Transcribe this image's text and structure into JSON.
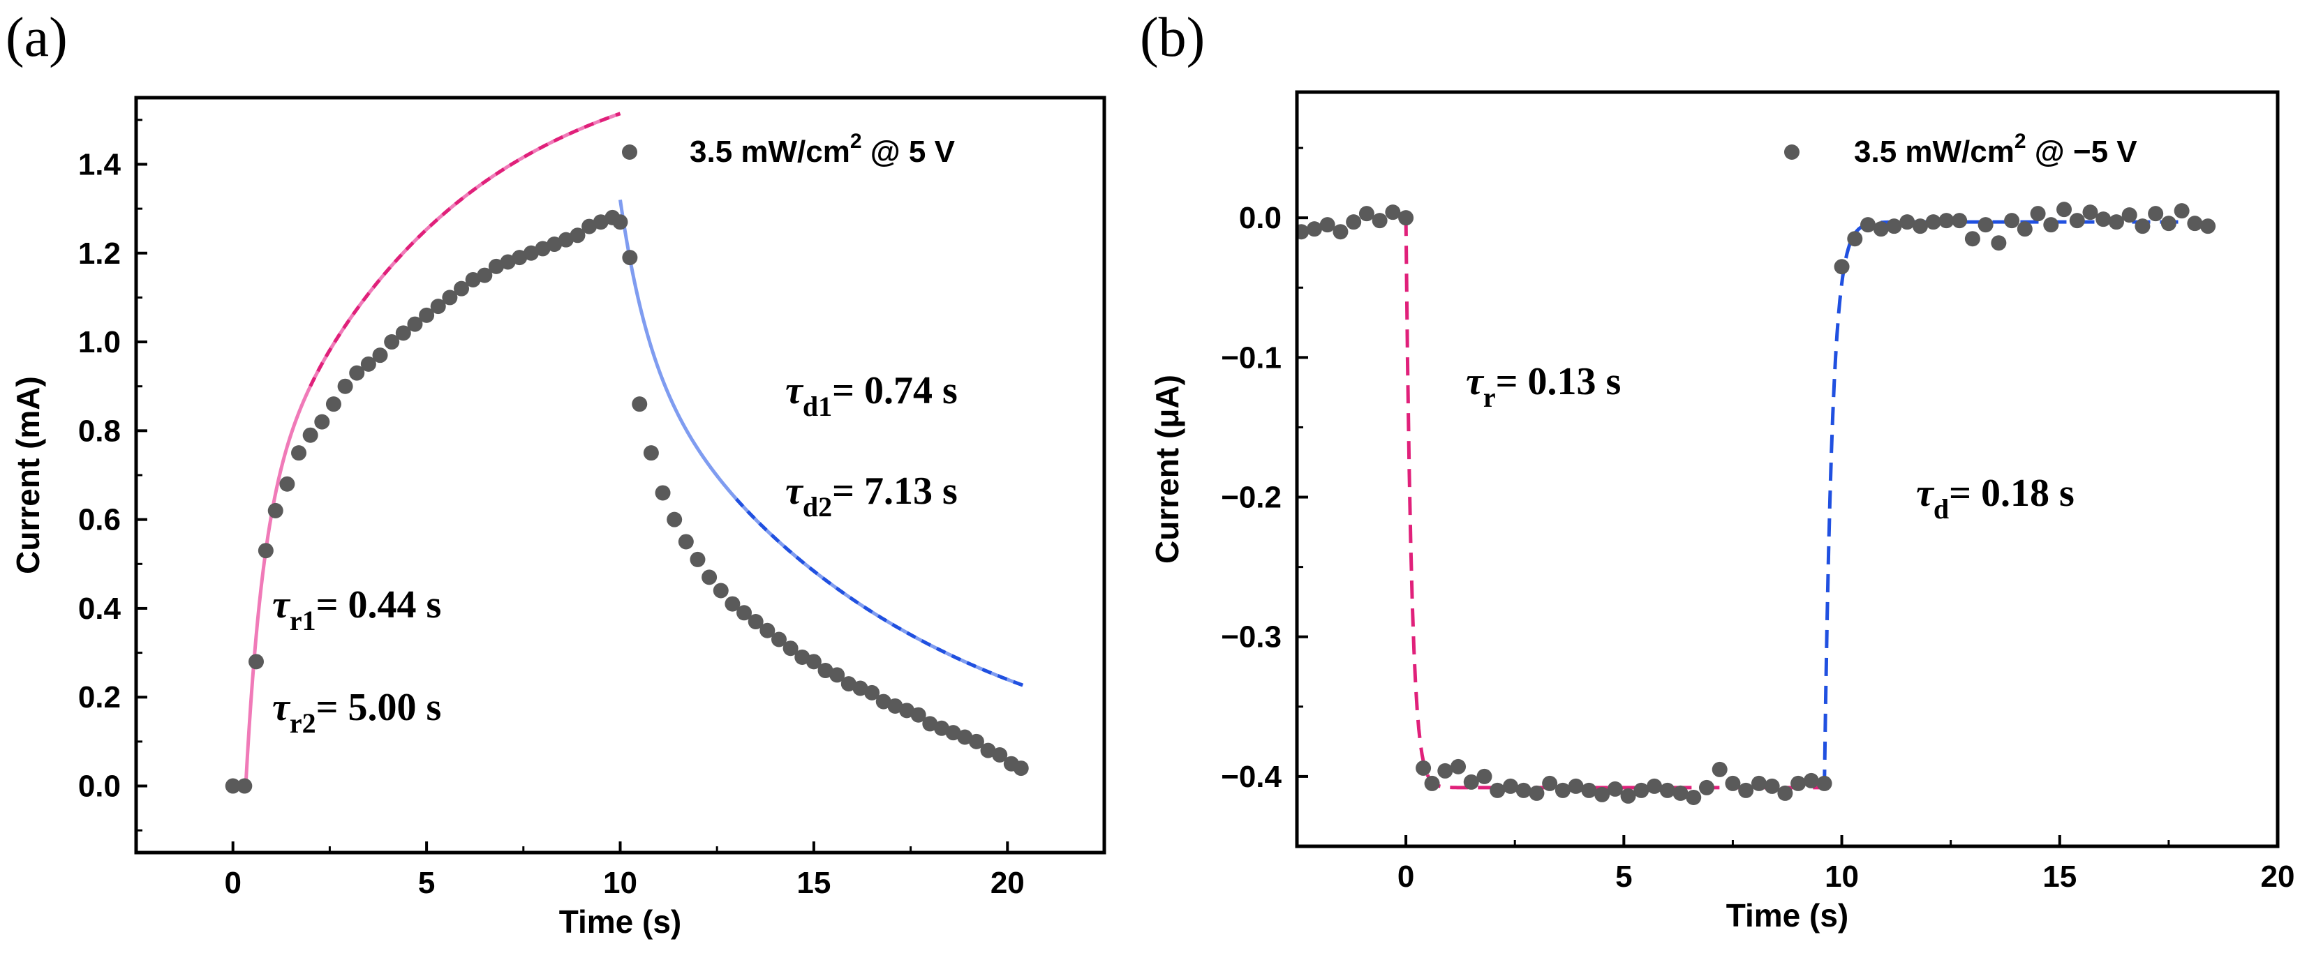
{
  "chart_data": [
    {
      "panel_label": "(a)",
      "type": "scatter",
      "xlabel": "Time (s)",
      "ylabel": "Current (mA)",
      "xlim": [
        -2.5,
        22.5
      ],
      "ylim": [
        -0.15,
        1.55
      ],
      "xticks": [
        0,
        5,
        10,
        15,
        20
      ],
      "yticks": [
        0.0,
        0.2,
        0.4,
        0.6,
        0.8,
        1.0,
        1.2,
        1.4
      ],
      "tick_decimals": 1,
      "legend": {
        "entry": "3.5 mW/cm",
        "superscript": "2",
        "suffix": " @ 5 V"
      },
      "annotations": [
        {
          "symbol": "τ",
          "sub": "r1",
          "text": "= 0.44 s"
        },
        {
          "symbol": "τ",
          "sub": "r2",
          "text": "= 5.00 s"
        },
        {
          "symbol": "τ",
          "sub": "d1",
          "text": "= 0.74 s"
        },
        {
          "symbol": "τ",
          "sub": "d2",
          "text": "= 7.13 s"
        }
      ],
      "colors": {
        "points": "#5a5a5a",
        "rise_fit": "#f07ab8",
        "rise_fit_dash": "#e0207a",
        "decay_fit": "#7f9cf0",
        "decay_fit_dash": "#2050e0"
      },
      "rise_model": {
        "t_on": 0.33,
        "A1": 0.616,
        "tau1": 0.44,
        "A2": 1.05,
        "tau2": 5.0,
        "t_end": 10.0
      },
      "decay_model": {
        "t_off": 10.0,
        "B1": 0.345,
        "tau1": 0.74,
        "B2": 0.975,
        "tau2": 7.13,
        "t_end": 20.4
      },
      "series": [
        {
          "name": "3.5 mW/cm2 @ 5 V",
          "x": [
            0.0,
            0.3,
            0.6,
            0.85,
            1.1,
            1.4,
            1.7,
            2.0,
            2.3,
            2.6,
            2.9,
            3.2,
            3.5,
            3.8,
            4.1,
            4.4,
            4.7,
            5.0,
            5.3,
            5.6,
            5.9,
            6.2,
            6.5,
            6.8,
            7.1,
            7.4,
            7.7,
            8.0,
            8.3,
            8.6,
            8.9,
            9.2,
            9.5,
            9.8,
            10.0,
            10.25,
            10.5,
            10.8,
            11.1,
            11.4,
            11.7,
            12.0,
            12.3,
            12.6,
            12.9,
            13.2,
            13.5,
            13.8,
            14.1,
            14.4,
            14.7,
            15.0,
            15.3,
            15.6,
            15.9,
            16.2,
            16.5,
            16.8,
            17.1,
            17.4,
            17.7,
            18.0,
            18.3,
            18.6,
            18.9,
            19.2,
            19.5,
            19.8,
            20.1,
            20.35
          ],
          "y": [
            0.0,
            0.0,
            0.28,
            0.53,
            0.62,
            0.68,
            0.75,
            0.79,
            0.82,
            0.86,
            0.9,
            0.93,
            0.95,
            0.97,
            1.0,
            1.02,
            1.04,
            1.06,
            1.08,
            1.1,
            1.12,
            1.14,
            1.15,
            1.17,
            1.18,
            1.19,
            1.2,
            1.21,
            1.22,
            1.23,
            1.24,
            1.26,
            1.27,
            1.28,
            1.27,
            1.19,
            0.86,
            0.75,
            0.66,
            0.6,
            0.55,
            0.51,
            0.47,
            0.44,
            0.41,
            0.39,
            0.37,
            0.35,
            0.33,
            0.31,
            0.29,
            0.28,
            0.26,
            0.25,
            0.23,
            0.22,
            0.21,
            0.19,
            0.18,
            0.17,
            0.16,
            0.14,
            0.13,
            0.12,
            0.11,
            0.1,
            0.08,
            0.07,
            0.05,
            0.04
          ]
        }
      ]
    },
    {
      "panel_label": "(b)",
      "type": "scatter",
      "xlabel": "Time (s)",
      "ylabel": "Current (μA)",
      "xlim": [
        -2.5,
        20.0
      ],
      "ylim": [
        -0.45,
        0.09
      ],
      "xticks": [
        0,
        5,
        10,
        15,
        20
      ],
      "yticks": [
        0.0,
        -0.1,
        -0.2,
        -0.3,
        -0.4
      ],
      "tick_decimals": 1,
      "negative_sign": "−",
      "legend": {
        "entry": "3.5 mW/cm",
        "superscript": "2",
        "suffix": " @ −5 V"
      },
      "annotations": [
        {
          "symbol": "τ",
          "sub": "r",
          "text": "= 0.13 s"
        },
        {
          "symbol": "τ",
          "sub": "d",
          "text": "= 0.18 s"
        }
      ],
      "colors": {
        "points": "#5a5a5a",
        "rise_fit": "#e0207a",
        "decay_fit": "#2050e0"
      },
      "rise_model": {
        "t_on": 0.0,
        "baseline": 0.0,
        "level": -0.408,
        "tau": 0.13,
        "t_end": 9.6
      },
      "decay_model": {
        "t_off": 9.6,
        "start": -0.408,
        "level": -0.003,
        "tau": 0.18,
        "t_end": 18.0
      },
      "series": [
        {
          "name": "3.5 mW/cm2 @ −5 V",
          "x": [
            -2.4,
            -2.1,
            -1.8,
            -1.5,
            -1.2,
            -0.9,
            -0.6,
            -0.3,
            0.0,
            0.4,
            0.6,
            0.9,
            1.2,
            1.5,
            1.8,
            2.1,
            2.4,
            2.7,
            3.0,
            3.3,
            3.6,
            3.9,
            4.2,
            4.5,
            4.8,
            5.1,
            5.4,
            5.7,
            6.0,
            6.3,
            6.6,
            6.9,
            7.2,
            7.5,
            7.8,
            8.1,
            8.4,
            8.7,
            9.0,
            9.3,
            9.6,
            10.0,
            10.3,
            10.6,
            10.9,
            11.2,
            11.5,
            11.8,
            12.1,
            12.4,
            12.7,
            13.0,
            13.3,
            13.6,
            13.9,
            14.2,
            14.5,
            14.8,
            15.1,
            15.4,
            15.7,
            16.0,
            16.3,
            16.6,
            16.9,
            17.2,
            17.5,
            17.8,
            18.1,
            18.4
          ],
          "y": [
            -0.01,
            -0.008,
            -0.005,
            -0.01,
            -0.003,
            0.003,
            -0.002,
            0.004,
            0.0,
            -0.394,
            -0.405,
            -0.396,
            -0.393,
            -0.404,
            -0.4,
            -0.41,
            -0.407,
            -0.41,
            -0.412,
            -0.405,
            -0.41,
            -0.407,
            -0.41,
            -0.413,
            -0.409,
            -0.414,
            -0.41,
            -0.407,
            -0.41,
            -0.412,
            -0.415,
            -0.408,
            -0.395,
            -0.405,
            -0.41,
            -0.405,
            -0.407,
            -0.412,
            -0.405,
            -0.403,
            -0.405,
            -0.035,
            -0.015,
            -0.005,
            -0.008,
            -0.006,
            -0.003,
            -0.006,
            -0.003,
            -0.002,
            -0.002,
            -0.015,
            -0.005,
            -0.018,
            -0.002,
            -0.008,
            0.003,
            -0.005,
            0.006,
            -0.002,
            0.004,
            -0.001,
            -0.003,
            0.002,
            -0.006,
            0.003,
            -0.004,
            0.005,
            -0.004,
            -0.006
          ]
        }
      ]
    }
  ]
}
